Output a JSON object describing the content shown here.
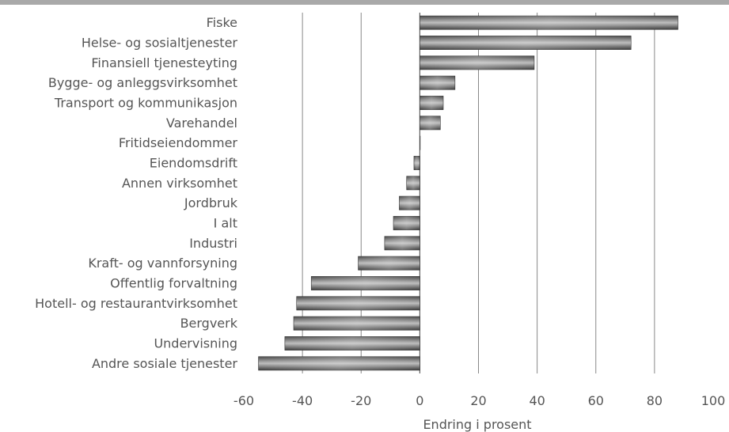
{
  "chart_data": {
    "type": "bar",
    "orientation": "horizontal",
    "title": "",
    "xlabel": "Endring i prosent",
    "ylabel": "",
    "xlim": [
      -60,
      100
    ],
    "xticks": [
      -60,
      -40,
      -20,
      0,
      20,
      40,
      60,
      80,
      100
    ],
    "grid": true,
    "categories": [
      "Fiske",
      "Helse- og sosialtjenester",
      "Finansiell tjenesteyting",
      "Bygge- og anleggsvirksomhet",
      "Transport og kommunikasjon",
      "Varehandel",
      "Fritidseiendommer",
      "Eiendomsdrift",
      "Annen virksomhet",
      "Jordbruk",
      "I alt",
      "Industri",
      "Kraft- og vannforsyning",
      "Offentlig forvaltning",
      "Hotell- og restaurantvirksomhet",
      "Bergverk",
      "Undervisning",
      "Andre sosiale tjenester"
    ],
    "values": [
      88,
      72,
      39,
      12,
      8,
      7,
      0,
      -2,
      -4.5,
      -7,
      -9,
      -12,
      -21,
      -37,
      -42,
      -43,
      -46,
      -55
    ],
    "colors": {
      "bar": "#8c8c8c",
      "grid": "#888888",
      "text": "#555555",
      "header": "#a9a9a9"
    }
  }
}
